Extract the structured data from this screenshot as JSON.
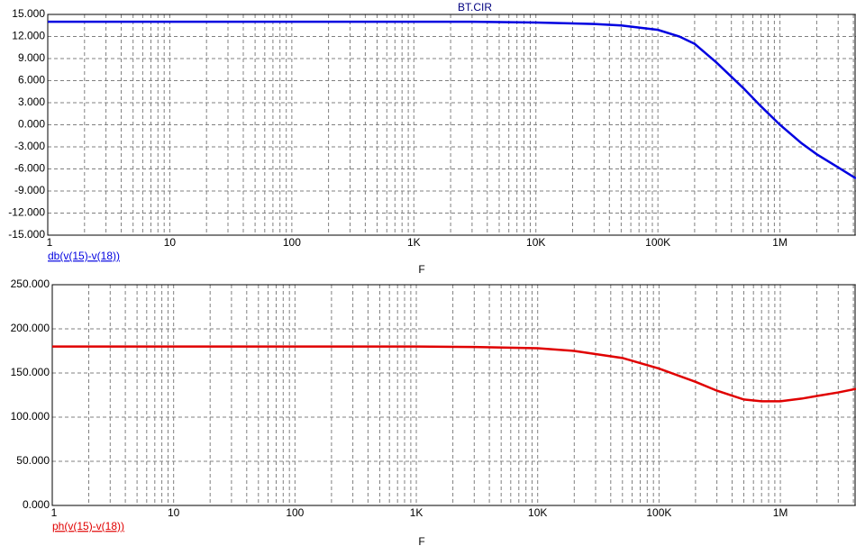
{
  "chart_data": [
    {
      "type": "line",
      "title": "BT.CIR",
      "x_label": "F",
      "xscale": "log",
      "grid": true,
      "minor_grid": true,
      "xlim": [
        1,
        4200000
      ],
      "xticks": [
        1,
        10,
        100,
        {
          "value": 1000,
          "label": "1K"
        },
        {
          "value": 10000,
          "label": "10K"
        },
        {
          "value": 100000,
          "label": "100K"
        },
        {
          "value": 1000000,
          "label": "1M"
        }
      ],
      "ylim": [
        -15,
        15
      ],
      "yticks": [
        {
          "value": -15,
          "label": "-15.000"
        },
        {
          "value": -12,
          "label": "-12.000"
        },
        {
          "value": -9,
          "label": "-9.000"
        },
        {
          "value": -6,
          "label": "-6.000"
        },
        {
          "value": -3,
          "label": "-3.000"
        },
        {
          "value": 0,
          "label": "0.000"
        },
        {
          "value": 3,
          "label": "3.000"
        },
        {
          "value": 6,
          "label": "6.000"
        },
        {
          "value": 9,
          "label": "9.000"
        },
        {
          "value": 12,
          "label": "12.000"
        },
        {
          "value": 15,
          "label": "15.000"
        }
      ],
      "x": [
        1,
        10,
        100,
        1000,
        3000,
        10000,
        30000,
        50000,
        100000,
        150000,
        200000,
        300000,
        500000,
        700000,
        1000000,
        1500000,
        2000000,
        3000000,
        4200000
      ],
      "series": [
        {
          "name": "db(v(15)-v(18))",
          "color": "#0000e0",
          "values": [
            14.0,
            14.0,
            14.0,
            14.0,
            14.0,
            13.9,
            13.7,
            13.5,
            12.9,
            12.0,
            11.0,
            8.5,
            5.0,
            2.5,
            0.0,
            -2.5,
            -4.0,
            -5.8,
            -7.3
          ]
        }
      ]
    },
    {
      "type": "line",
      "x_label": "F",
      "xscale": "log",
      "grid": true,
      "minor_grid": true,
      "xlim": [
        1,
        4200000
      ],
      "xticks": [
        1,
        10,
        100,
        {
          "value": 1000,
          "label": "1K"
        },
        {
          "value": 10000,
          "label": "10K"
        },
        {
          "value": 100000,
          "label": "100K"
        },
        {
          "value": 1000000,
          "label": "1M"
        }
      ],
      "ylim": [
        0,
        250
      ],
      "yticks": [
        {
          "value": 0,
          "label": "0.000"
        },
        {
          "value": 50,
          "label": "50.000"
        },
        {
          "value": 100,
          "label": "100.000"
        },
        {
          "value": 150,
          "label": "150.000"
        },
        {
          "value": 200,
          "label": "200.000"
        },
        {
          "value": 250,
          "label": "250.000"
        }
      ],
      "x": [
        1,
        10,
        100,
        1000,
        3000,
        10000,
        20000,
        50000,
        100000,
        200000,
        300000,
        500000,
        700000,
        1000000,
        1500000,
        2000000,
        3000000,
        4200000
      ],
      "series": [
        {
          "name": "ph(v(15)-v(18))",
          "color": "#e00000",
          "values": [
            180,
            180,
            180,
            180,
            179.5,
            178,
            175,
            167,
            155,
            140,
            130,
            120,
            118,
            118,
            121,
            124,
            128,
            132
          ]
        }
      ]
    }
  ]
}
